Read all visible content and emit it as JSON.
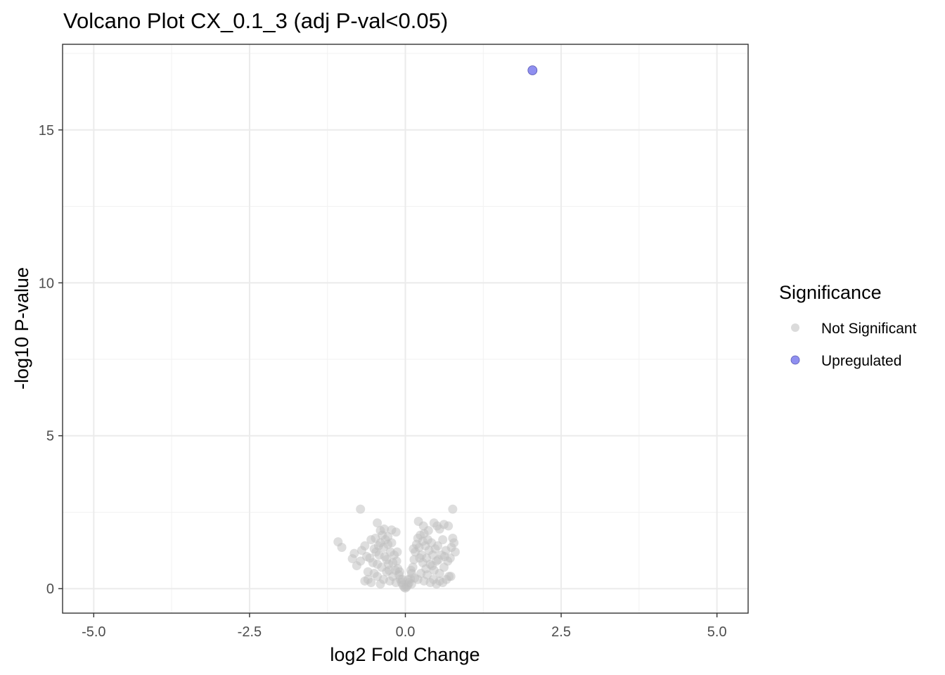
{
  "chart_data": {
    "type": "scatter",
    "title": "Volcano Plot CX_0.1_3 (adj P-val<0.05)",
    "xlabel": "log2 Fold Change",
    "ylabel": "-log10 P-value",
    "xlim": [
      -5.5,
      5.5
    ],
    "ylim": [
      -0.8,
      17.8
    ],
    "x_ticks": [
      -5.0,
      -2.5,
      0.0,
      2.5,
      5.0
    ],
    "x_tick_labels": [
      "-5.0",
      "-2.5",
      "0.0",
      "2.5",
      "5.0"
    ],
    "y_ticks": [
      0,
      5,
      10,
      15
    ],
    "y_tick_labels": [
      "0",
      "5",
      "10",
      "15"
    ],
    "grid": true,
    "legend": {
      "title": "Significance",
      "placement": "right",
      "entries": [
        {
          "label": "Not Significant",
          "color": "#bebebe"
        },
        {
          "label": "Upregulated",
          "color": "#8f8ff0"
        }
      ]
    },
    "series": [
      {
        "name": "Not Significant",
        "color": "#bebebe",
        "points": [
          [
            -1.08,
            1.53
          ],
          [
            -1.02,
            1.35
          ],
          [
            -0.72,
            2.6
          ],
          [
            -0.45,
            2.15
          ],
          [
            -0.4,
            1.9
          ],
          [
            -0.34,
            1.95
          ],
          [
            -0.28,
            1.7
          ],
          [
            -0.22,
            1.92
          ],
          [
            -0.15,
            1.85
          ],
          [
            -0.82,
            1.15
          ],
          [
            -0.85,
            0.98
          ],
          [
            -0.78,
            0.75
          ],
          [
            -0.72,
            0.9
          ],
          [
            -0.7,
            1.25
          ],
          [
            -0.65,
            1.4
          ],
          [
            -0.62,
            1.05
          ],
          [
            -0.6,
            0.55
          ],
          [
            -0.55,
            1.6
          ],
          [
            -0.52,
            0.85
          ],
          [
            -0.5,
            1.3
          ],
          [
            -0.48,
            1.65
          ],
          [
            -0.45,
            0.4
          ],
          [
            -0.42,
            1.1
          ],
          [
            -0.4,
            1.5
          ],
          [
            -0.38,
            0.7
          ],
          [
            -0.35,
            1.35
          ],
          [
            -0.32,
            1.6
          ],
          [
            -0.3,
            0.95
          ],
          [
            -0.28,
            1.45
          ],
          [
            -0.26,
            0.6
          ],
          [
            -0.24,
            1.2
          ],
          [
            -0.22,
            1.5
          ],
          [
            -0.2,
            0.85
          ],
          [
            -0.18,
            1.1
          ],
          [
            -0.16,
            0.6
          ],
          [
            -0.14,
            0.9
          ],
          [
            -0.12,
            0.65
          ],
          [
            -0.1,
            0.45
          ],
          [
            -0.08,
            0.3
          ],
          [
            -0.06,
            0.2
          ],
          [
            -0.04,
            0.12
          ],
          [
            -0.02,
            0.05
          ],
          [
            0.0,
            0.02
          ],
          [
            -0.55,
            0.2
          ],
          [
            -0.5,
            0.5
          ],
          [
            -0.45,
            0.8
          ],
          [
            -0.35,
            0.3
          ],
          [
            -0.3,
            0.55
          ],
          [
            -0.25,
            0.25
          ],
          [
            -0.2,
            0.4
          ],
          [
            -0.15,
            0.2
          ],
          [
            -0.65,
            0.25
          ],
          [
            -0.6,
            0.3
          ],
          [
            -0.4,
            0.15
          ],
          [
            -0.33,
            1.05
          ],
          [
            -0.27,
            0.8
          ],
          [
            -0.47,
            1.2
          ],
          [
            -0.57,
            1.0
          ],
          [
            -0.37,
            1.75
          ],
          [
            -0.43,
            1.4
          ],
          [
            0.02,
            0.06
          ],
          [
            0.04,
            0.12
          ],
          [
            0.06,
            0.2
          ],
          [
            0.08,
            0.32
          ],
          [
            0.1,
            0.5
          ],
          [
            0.12,
            0.7
          ],
          [
            0.14,
            0.95
          ],
          [
            0.16,
            1.2
          ],
          [
            0.18,
            1.45
          ],
          [
            0.2,
            1.65
          ],
          [
            0.22,
            1.35
          ],
          [
            0.24,
            1.75
          ],
          [
            0.26,
            1.1
          ],
          [
            0.28,
            1.55
          ],
          [
            0.3,
            1.8
          ],
          [
            0.32,
            1.4
          ],
          [
            0.34,
            1.0
          ],
          [
            0.36,
            1.6
          ],
          [
            0.38,
            1.25
          ],
          [
            0.4,
            0.8
          ],
          [
            0.42,
            1.5
          ],
          [
            0.44,
            1.1
          ],
          [
            0.46,
            0.6
          ],
          [
            0.48,
            1.3
          ],
          [
            0.5,
            0.9
          ],
          [
            0.52,
            1.4
          ],
          [
            0.55,
            0.5
          ],
          [
            0.58,
            1.1
          ],
          [
            0.6,
            1.6
          ],
          [
            0.62,
            0.7
          ],
          [
            0.65,
            1.25
          ],
          [
            0.68,
            0.9
          ],
          [
            0.7,
            0.4
          ],
          [
            0.72,
            1.0
          ],
          [
            0.74,
            1.35
          ],
          [
            0.76,
            1.65
          ],
          [
            0.78,
            1.5
          ],
          [
            0.8,
            1.2
          ],
          [
            0.2,
            0.3
          ],
          [
            0.25,
            0.5
          ],
          [
            0.3,
            0.25
          ],
          [
            0.35,
            0.45
          ],
          [
            0.4,
            0.2
          ],
          [
            0.45,
            0.3
          ],
          [
            0.5,
            0.15
          ],
          [
            0.55,
            0.25
          ],
          [
            0.6,
            0.2
          ],
          [
            0.15,
            0.35
          ],
          [
            0.28,
            0.85
          ],
          [
            0.33,
            0.65
          ],
          [
            0.43,
            0.75
          ],
          [
            0.53,
            0.95
          ],
          [
            0.63,
            1.05
          ],
          [
            0.23,
            1.0
          ],
          [
            0.37,
            1.9
          ],
          [
            0.29,
            2.05
          ],
          [
            0.21,
            2.2
          ],
          [
            0.46,
            2.15
          ],
          [
            0.51,
            2.05
          ],
          [
            0.55,
            1.95
          ],
          [
            0.62,
            2.1
          ],
          [
            0.69,
            2.05
          ],
          [
            0.76,
            2.6
          ],
          [
            0.73,
            0.4
          ],
          [
            0.66,
            0.3
          ],
          [
            0.1,
            0.15
          ],
          [
            -0.05,
            0.3
          ],
          [
            0.05,
            0.3
          ],
          [
            -0.09,
            0.55
          ],
          [
            0.09,
            0.6
          ],
          [
            -0.13,
            1.2
          ],
          [
            0.13,
            1.3
          ]
        ]
      },
      {
        "name": "Upregulated",
        "color": "#8f8ff0",
        "points": [
          [
            2.04,
            16.95
          ]
        ]
      }
    ]
  }
}
